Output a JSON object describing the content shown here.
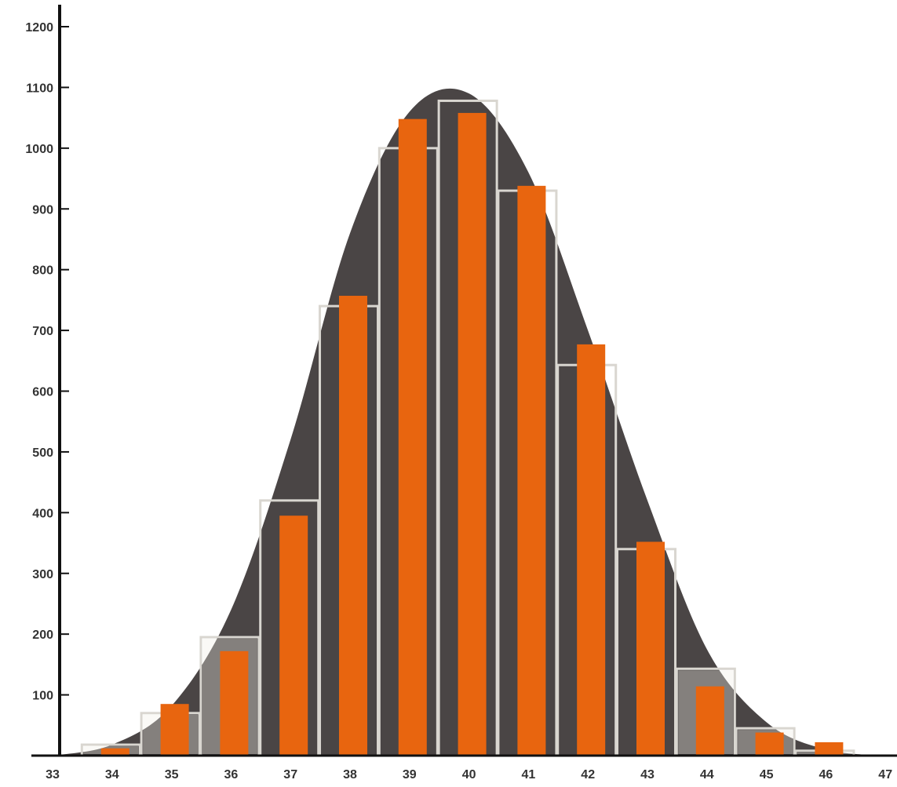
{
  "chart_data": {
    "type": "bar",
    "title": "",
    "xlabel": "",
    "ylabel": "",
    "x_tick_labels": [
      "33",
      "34",
      "35",
      "36",
      "37",
      "38",
      "39",
      "40",
      "41",
      "42",
      "43",
      "44",
      "45",
      "46",
      "47"
    ],
    "y_tick_labels": [
      "100",
      "200",
      "300",
      "400",
      "500",
      "600",
      "700",
      "800",
      "900",
      "1000",
      "1100",
      "1200"
    ],
    "ylim": [
      0,
      1230
    ],
    "categories": [
      "34",
      "35",
      "36",
      "37",
      "38",
      "39",
      "40",
      "41",
      "42",
      "43",
      "44",
      "45",
      "46"
    ],
    "series": [
      {
        "values": [
          12,
          85,
          172,
          395,
          757,
          1048,
          1058,
          938,
          677,
          352,
          114,
          38,
          22
        ]
      },
      {
        "values": [
          18,
          70,
          195,
          420,
          740,
          1000,
          1078,
          930,
          643,
          340,
          143,
          45,
          8
        ]
      }
    ],
    "curve": {
      "x": [
        33,
        34,
        35,
        36,
        37,
        38,
        39,
        40,
        41,
        42,
        43,
        44,
        45,
        46,
        47
      ],
      "y": [
        0,
        18,
        82,
        240,
        520,
        860,
        1060,
        1090,
        960,
        700,
        420,
        175,
        55,
        10,
        0
      ]
    },
    "colors": {
      "curve_fill": "#4a4545",
      "orange_bar": "#e8650f",
      "outline_bar": "#d9d6d0",
      "outline_fill": "#f1eee6",
      "axis": "#111111",
      "text": "#333333"
    },
    "grid": false,
    "legend": "none"
  }
}
